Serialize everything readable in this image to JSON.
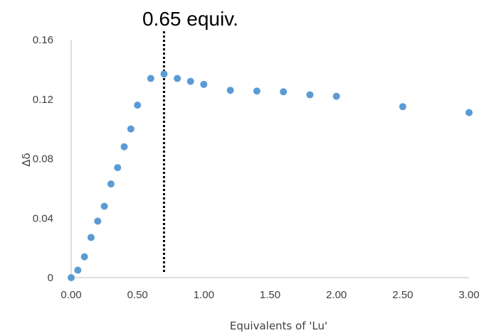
{
  "chart_data": {
    "type": "scatter",
    "title": "",
    "xlabel": "Equivalents of 'Lu'",
    "ylabel": "Δδ",
    "xlim": [
      0,
      3.0
    ],
    "ylim": [
      0,
      0.16
    ],
    "x_ticks": [
      "0.00",
      "0.50",
      "1.00",
      "1.50",
      "2.00",
      "2.50",
      "3.00"
    ],
    "x_tick_values": [
      0,
      0.5,
      1.0,
      1.5,
      2.0,
      2.5,
      3.0
    ],
    "y_ticks": [
      "0",
      "0.04",
      "0.08",
      "0.12",
      "0.16"
    ],
    "y_tick_values": [
      0,
      0.04,
      0.08,
      0.12,
      0.16
    ],
    "grid": false,
    "marker_color": "#5B9BD5",
    "series": [
      {
        "x": [
          0.0,
          0.05,
          0.1,
          0.15,
          0.2,
          0.25,
          0.3,
          0.35,
          0.4,
          0.45,
          0.5,
          0.6,
          0.7,
          0.8,
          0.9,
          1.0,
          1.2,
          1.4,
          1.6,
          1.8,
          2.0,
          2.5,
          3.0
        ],
        "y": [
          0.0,
          0.005,
          0.014,
          0.027,
          0.038,
          0.048,
          0.063,
          0.074,
          0.088,
          0.1,
          0.116,
          0.134,
          0.137,
          0.134,
          0.132,
          0.13,
          0.126,
          0.1255,
          0.125,
          0.123,
          0.122,
          0.115,
          0.111
        ]
      }
    ],
    "annotation": {
      "text": "0.65 equiv.",
      "x": 0.7,
      "line_style": "dotted",
      "line_color": "#000000"
    }
  }
}
